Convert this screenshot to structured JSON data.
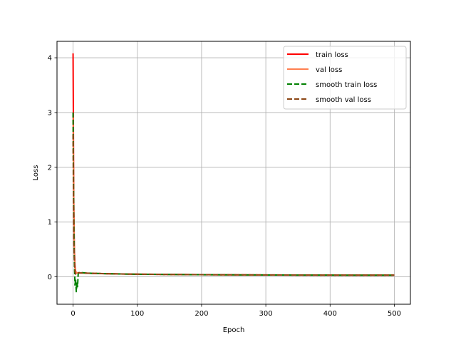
{
  "chart_data": {
    "type": "line",
    "title": "",
    "xlabel": "Epoch",
    "ylabel": "Loss",
    "xlim": [
      -25,
      525
    ],
    "ylim": [
      -0.5,
      4.3
    ],
    "xticks": [
      0,
      100,
      200,
      300,
      400,
      500
    ],
    "yticks": [
      0,
      1,
      2,
      3,
      4
    ],
    "grid": true,
    "legend_position": "upper right",
    "series": [
      {
        "name": "train loss",
        "color": "#ff0000",
        "style": "solid",
        "x": [
          0,
          1,
          2,
          3,
          4,
          5,
          6,
          8,
          10,
          15,
          20,
          30,
          50,
          75,
          100,
          150,
          200,
          250,
          300,
          350,
          400,
          450,
          500
        ],
        "y": [
          4.08,
          1.5,
          0.5,
          0.2,
          0.1,
          0.08,
          0.07,
          0.07,
          0.07,
          0.07,
          0.068,
          0.063,
          0.058,
          0.052,
          0.048,
          0.043,
          0.039,
          0.036,
          0.034,
          0.032,
          0.031,
          0.03,
          0.03
        ]
      },
      {
        "name": "val loss",
        "color": "#ff7f50",
        "style": "solid",
        "x": [
          0,
          1,
          2,
          3,
          4,
          5,
          6,
          8,
          10,
          15,
          20,
          30,
          50,
          75,
          100,
          150,
          200,
          250,
          300,
          350,
          400,
          450,
          500
        ],
        "y": [
          2.95,
          1.2,
          0.4,
          0.15,
          0.09,
          0.08,
          0.075,
          0.072,
          0.07,
          0.07,
          0.068,
          0.064,
          0.058,
          0.053,
          0.049,
          0.044,
          0.04,
          0.037,
          0.035,
          0.033,
          0.032,
          0.031,
          0.031
        ]
      },
      {
        "name": "smooth train loss",
        "color": "#008000",
        "style": "dashed",
        "x": [
          0,
          1,
          2,
          3,
          4,
          5,
          6,
          7,
          8,
          10,
          15,
          20,
          30,
          50,
          75,
          100,
          150,
          200,
          250,
          300,
          350,
          400,
          450,
          500
        ],
        "y": [
          3.0,
          1.2,
          0.3,
          -0.15,
          -0.05,
          -0.27,
          -0.1,
          -0.18,
          0.06,
          0.08,
          0.075,
          0.07,
          0.065,
          0.058,
          0.052,
          0.048,
          0.043,
          0.039,
          0.036,
          0.034,
          0.032,
          0.031,
          0.03,
          0.03
        ]
      },
      {
        "name": "smooth val loss",
        "color": "#8b4513",
        "style": "dashed",
        "x": [
          0,
          1,
          2,
          3,
          4,
          5,
          6,
          8,
          10,
          15,
          20,
          30,
          50,
          75,
          100,
          150,
          200,
          250,
          300,
          350,
          400,
          450,
          500
        ],
        "y": [
          2.6,
          0.7,
          0.35,
          0.1,
          0.05,
          0.07,
          0.075,
          0.075,
          0.072,
          0.07,
          0.068,
          0.064,
          0.058,
          0.053,
          0.049,
          0.044,
          0.04,
          0.037,
          0.035,
          0.033,
          0.032,
          0.031,
          0.031
        ]
      }
    ]
  }
}
